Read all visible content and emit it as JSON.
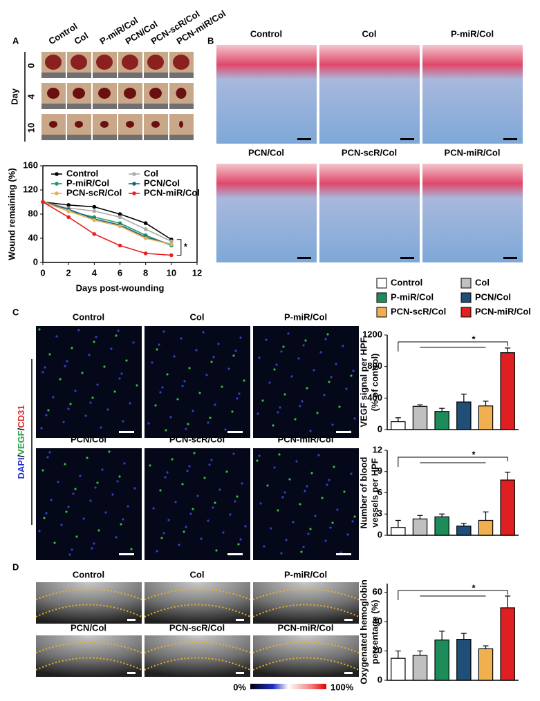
{
  "panel_labels": [
    "A",
    "B",
    "C",
    "D"
  ],
  "panel_a": {
    "columns": [
      "Control",
      "Col",
      "P-miR/Col",
      "PCN/Col",
      "PCN-scR/Col",
      "PCN-miR/Col"
    ],
    "row_title": "Day",
    "days": [
      "0",
      "4",
      "10"
    ]
  },
  "panel_b": {
    "labels": [
      "Control",
      "Col",
      "P-miR/Col",
      "PCN/Col",
      "PCN-scR/Col",
      "PCN-miR/Col"
    ]
  },
  "panel_c": {
    "labels": [
      "Control",
      "Col",
      "P-miR/Col",
      "PCN/Col",
      "PCN-scR/Col",
      "PCN-miR/Col"
    ],
    "stain": [
      "DAPI",
      "/",
      "VEGF",
      "/",
      "CD31"
    ]
  },
  "panel_d": {
    "labels": [
      "Control",
      "Col",
      "P-miR/Col",
      "PCN/Col",
      "PCN-scR/Col",
      "PCN-miR/Col"
    ],
    "colorbar": [
      "0%",
      "100%"
    ]
  },
  "legend": {
    "names": [
      "Control",
      "Col",
      "P-miR/Col",
      "PCN/Col",
      "PCN-scR/Col",
      "PCN-miR/Col"
    ],
    "colors": [
      "#ffffff",
      "#c0c0c0",
      "#1e8c5a",
      "#1f4e79",
      "#f0b050",
      "#e02020"
    ]
  },
  "chart_data": [
    {
      "type": "line",
      "y_label": [
        "Wound remaining (%)"
      ],
      "x_label": "Days post-wounding",
      "x": [
        0,
        2,
        4,
        6,
        8,
        10
      ],
      "xlim": [
        0,
        12
      ],
      "xticks": [
        0,
        2,
        4,
        6,
        8,
        10,
        12
      ],
      "ylim": [
        0,
        160
      ],
      "yticks": [
        0,
        40,
        80,
        120,
        160
      ],
      "annotation": "*",
      "series": [
        {
          "name": "Control",
          "color": "#000000",
          "values": [
            100,
            95,
            92,
            80,
            65,
            38
          ]
        },
        {
          "name": "Col",
          "color": "#aaaaaa",
          "values": [
            100,
            90,
            85,
            75,
            55,
            35
          ]
        },
        {
          "name": "P-miR/Col",
          "color": "#1a9a6a",
          "values": [
            100,
            85,
            75,
            65,
            45,
            28
          ]
        },
        {
          "name": "PCN/Col",
          "color": "#1f5f7f",
          "values": [
            100,
            88,
            72,
            62,
            42,
            30
          ]
        },
        {
          "name": "PCN-scR/Col",
          "color": "#e8b050",
          "values": [
            100,
            85,
            70,
            60,
            40,
            30
          ]
        },
        {
          "name": "PCN-miR/Col",
          "color": "#e82020",
          "values": [
            100,
            75,
            47,
            28,
            15,
            12
          ]
        }
      ]
    },
    {
      "type": "bar",
      "y_label": [
        "VEGF signal per HPF",
        "(% of control)"
      ],
      "annotation": "*",
      "ylim": [
        0,
        1200
      ],
      "yticks": [
        0,
        400,
        800,
        1200
      ],
      "values": [
        100,
        295,
        230,
        350,
        300,
        975
      ],
      "errors": [
        50,
        20,
        40,
        100,
        60,
        60
      ],
      "colors": [
        "#ffffff",
        "#c0c0c0",
        "#1e8c5a",
        "#1f4e79",
        "#f0b050",
        "#e02020"
      ]
    },
    {
      "type": "bar",
      "y_label": [
        "Number of blood",
        "vessels per HPF"
      ],
      "annotation": "*",
      "ylim": [
        0,
        12
      ],
      "yticks": [
        0,
        3,
        6,
        9,
        12
      ],
      "values": [
        1.1,
        2.3,
        2.6,
        1.3,
        2.1,
        7.8
      ],
      "errors": [
        1.0,
        0.5,
        0.4,
        0.4,
        1.2,
        1.1
      ],
      "colors": [
        "#ffffff",
        "#c0c0c0",
        "#1e8c5a",
        "#1f4e79",
        "#f0b050",
        "#e02020"
      ]
    },
    {
      "type": "bar",
      "y_label": [
        "Oxygenated hemoglobin",
        "percentage (%)"
      ],
      "annotation": "*",
      "ylim": [
        0,
        66
      ],
      "yticks": [
        0,
        20,
        40,
        60
      ],
      "values": [
        15,
        17,
        27.5,
        28,
        21.5,
        49.5
      ],
      "errors": [
        5,
        3,
        6,
        4,
        2,
        8
      ],
      "colors": [
        "#ffffff",
        "#c0c0c0",
        "#1e8c5a",
        "#1f4e79",
        "#f0b050",
        "#e02020"
      ]
    }
  ]
}
